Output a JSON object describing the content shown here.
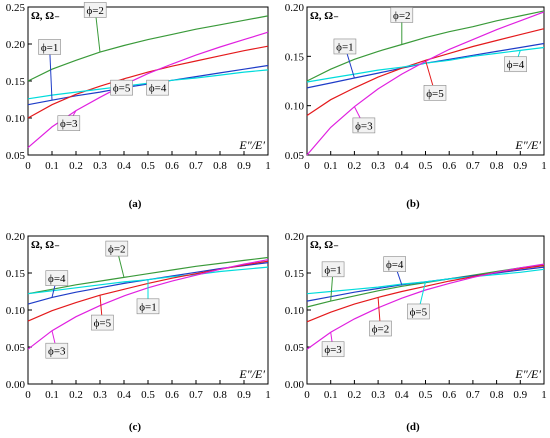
{
  "figure": {
    "captions": [
      "(a)",
      "(b)",
      "(c)",
      "(d)"
    ]
  },
  "chart_data": [
    {
      "type": "line",
      "caption": "(a)",
      "ylabel": "Ω, Ω₋",
      "xlabel": "E″/E′",
      "xlim": [
        0,
        1.0
      ],
      "ylim": [
        0.05,
        0.25
      ],
      "xticks": [
        "0",
        "0.1",
        "0.2",
        "0.3",
        "0.4",
        "0.5",
        "0.6",
        "0.7",
        "0.8",
        "0.9",
        "1"
      ],
      "yticks": [
        "0.05",
        "0.10",
        "0.15",
        "0.20",
        "0.25"
      ],
      "series": [
        {
          "name": "ϕ=2",
          "color": "#3a9a3a",
          "x": [
            0,
            0.1,
            0.2,
            0.3,
            0.4,
            0.5,
            0.6,
            0.7,
            0.8,
            0.9,
            1.0
          ],
          "y": [
            0.15,
            0.166,
            0.178,
            0.189,
            0.198,
            0.206,
            0.213,
            0.22,
            0.226,
            0.232,
            0.238
          ]
        },
        {
          "name": "ϕ=1",
          "color": "#1e3cc8",
          "x": [
            0,
            0.1,
            0.2,
            0.3,
            0.4,
            0.5,
            0.6,
            0.7,
            0.8,
            0.9,
            1.0
          ],
          "y": [
            0.118,
            0.124,
            0.13,
            0.135,
            0.141,
            0.146,
            0.151,
            0.156,
            0.161,
            0.166,
            0.171
          ]
        },
        {
          "name": "ϕ=5",
          "color": "#e41a1c",
          "x": [
            0,
            0.1,
            0.2,
            0.3,
            0.4,
            0.5,
            0.6,
            0.7,
            0.8,
            0.9,
            1.0
          ],
          "y": [
            0.1,
            0.118,
            0.132,
            0.143,
            0.153,
            0.162,
            0.17,
            0.177,
            0.184,
            0.191,
            0.197
          ]
        },
        {
          "name": "ϕ=4",
          "color": "#00dcdc",
          "x": [
            0,
            0.1,
            0.2,
            0.3,
            0.4,
            0.5,
            0.6,
            0.7,
            0.8,
            0.9,
            1.0
          ],
          "y": [
            0.126,
            0.131,
            0.135,
            0.139,
            0.143,
            0.147,
            0.151,
            0.154,
            0.158,
            0.162,
            0.165
          ]
        },
        {
          "name": "ϕ=3",
          "color": "#e020e0",
          "x": [
            0,
            0.1,
            0.2,
            0.3,
            0.4,
            0.5,
            0.6,
            0.7,
            0.8,
            0.9,
            1.0
          ],
          "y": [
            0.06,
            0.088,
            0.11,
            0.128,
            0.145,
            0.16,
            0.173,
            0.185,
            0.196,
            0.206,
            0.216
          ]
        }
      ],
      "annotations": [
        {
          "text": "ϕ=1",
          "series": "ϕ=1",
          "x": 0.09,
          "y": 0.196
        },
        {
          "text": "ϕ=2",
          "series": "ϕ=2",
          "x": 0.28,
          "y": 0.246
        },
        {
          "text": "ϕ=3",
          "series": "ϕ=3",
          "x": 0.17,
          "y": 0.093
        },
        {
          "text": "ϕ=5",
          "series": "ϕ=5",
          "x": 0.39,
          "y": 0.141
        },
        {
          "text": "ϕ=4",
          "series": "ϕ=4",
          "x": 0.54,
          "y": 0.141
        }
      ]
    },
    {
      "type": "line",
      "caption": "(b)",
      "ylabel": "Ω, Ω₋",
      "xlabel": "E″/E′",
      "xlim": [
        0,
        1.0
      ],
      "ylim": [
        0.05,
        0.2
      ],
      "xticks": [
        "0",
        "0.1",
        "0.2",
        "0.3",
        "0.4",
        "0.5",
        "0.6",
        "0.7",
        "0.8",
        "0.9",
        "1"
      ],
      "yticks": [
        "0.05",
        "0.10",
        "0.15",
        "0.20"
      ],
      "series": [
        {
          "name": "ϕ=2",
          "color": "#3a9a3a",
          "x": [
            0,
            0.1,
            0.2,
            0.3,
            0.4,
            0.5,
            0.6,
            0.7,
            0.8,
            0.9,
            1.0
          ],
          "y": [
            0.125,
            0.137,
            0.147,
            0.155,
            0.162,
            0.169,
            0.175,
            0.18,
            0.186,
            0.191,
            0.196
          ]
        },
        {
          "name": "ϕ=1",
          "color": "#1e3cc8",
          "x": [
            0,
            0.1,
            0.2,
            0.3,
            0.4,
            0.5,
            0.6,
            0.7,
            0.8,
            0.9,
            1.0
          ],
          "y": [
            0.118,
            0.123,
            0.128,
            0.133,
            0.138,
            0.143,
            0.147,
            0.151,
            0.155,
            0.159,
            0.163
          ]
        },
        {
          "name": "ϕ=5",
          "color": "#e41a1c",
          "x": [
            0,
            0.1,
            0.2,
            0.3,
            0.4,
            0.5,
            0.6,
            0.7,
            0.8,
            0.9,
            1.0
          ],
          "y": [
            0.09,
            0.106,
            0.118,
            0.129,
            0.138,
            0.146,
            0.153,
            0.16,
            0.166,
            0.172,
            0.178
          ]
        },
        {
          "name": "ϕ=4",
          "color": "#00dcdc",
          "x": [
            0,
            0.1,
            0.2,
            0.3,
            0.4,
            0.5,
            0.6,
            0.7,
            0.8,
            0.9,
            1.0
          ],
          "y": [
            0.124,
            0.128,
            0.132,
            0.136,
            0.139,
            0.143,
            0.146,
            0.15,
            0.153,
            0.156,
            0.159
          ]
        },
        {
          "name": "ϕ=3",
          "color": "#e020e0",
          "x": [
            0,
            0.1,
            0.2,
            0.3,
            0.4,
            0.5,
            0.6,
            0.7,
            0.8,
            0.9,
            1.0
          ],
          "y": [
            0.05,
            0.078,
            0.099,
            0.117,
            0.132,
            0.145,
            0.157,
            0.167,
            0.177,
            0.186,
            0.195
          ]
        }
      ],
      "annotations": [
        {
          "text": "ϕ=1",
          "series": "ϕ=1",
          "x": 0.16,
          "y": 0.16
        },
        {
          "text": "ϕ=2",
          "series": "ϕ=2",
          "x": 0.4,
          "y": 0.192
        },
        {
          "text": "ϕ=3",
          "series": "ϕ=3",
          "x": 0.24,
          "y": 0.08
        },
        {
          "text": "ϕ=5",
          "series": "ϕ=5",
          "x": 0.54,
          "y": 0.113
        },
        {
          "text": "ϕ=4",
          "series": "ϕ=4",
          "x": 0.88,
          "y": 0.142
        }
      ]
    },
    {
      "type": "line",
      "caption": "(c)",
      "ylabel": "Ω, Ω₋",
      "xlabel": "E″/E′",
      "xlim": [
        0,
        1.0
      ],
      "ylim": [
        0.0,
        0.2
      ],
      "xticks": [
        "0",
        "0.1",
        "0.2",
        "0.3",
        "0.4",
        "0.5",
        "0.6",
        "0.7",
        "0.8",
        "0.9",
        "1"
      ],
      "yticks": [
        "0.00",
        "0.05",
        "0.10",
        "0.15",
        "0.20"
      ],
      "series": [
        {
          "name": "ϕ=2",
          "color": "#3a9a3a",
          "x": [
            0,
            0.1,
            0.2,
            0.3,
            0.4,
            0.5,
            0.6,
            0.7,
            0.8,
            0.9,
            1.0
          ],
          "y": [
            0.122,
            0.128,
            0.134,
            0.139,
            0.144,
            0.149,
            0.154,
            0.159,
            0.163,
            0.167,
            0.171
          ]
        },
        {
          "name": "ϕ=4",
          "color": "#1e3cc8",
          "x": [
            0,
            0.1,
            0.2,
            0.3,
            0.4,
            0.5,
            0.6,
            0.7,
            0.8,
            0.9,
            1.0
          ],
          "y": [
            0.108,
            0.117,
            0.124,
            0.13,
            0.136,
            0.141,
            0.146,
            0.151,
            0.156,
            0.16,
            0.164
          ]
        },
        {
          "name": "ϕ=1",
          "color": "#00dcdc",
          "x": [
            0,
            0.1,
            0.2,
            0.3,
            0.4,
            0.5,
            0.6,
            0.7,
            0.8,
            0.9,
            1.0
          ],
          "y": [
            0.122,
            0.126,
            0.13,
            0.134,
            0.138,
            0.141,
            0.145,
            0.148,
            0.152,
            0.155,
            0.158
          ]
        },
        {
          "name": "ϕ=5",
          "color": "#e41a1c",
          "x": [
            0,
            0.1,
            0.2,
            0.3,
            0.4,
            0.5,
            0.6,
            0.7,
            0.8,
            0.9,
            1.0
          ],
          "y": [
            0.085,
            0.099,
            0.11,
            0.12,
            0.128,
            0.136,
            0.143,
            0.149,
            0.155,
            0.161,
            0.166
          ]
        },
        {
          "name": "ϕ=3",
          "color": "#e020e0",
          "x": [
            0,
            0.1,
            0.2,
            0.3,
            0.4,
            0.5,
            0.6,
            0.7,
            0.8,
            0.9,
            1.0
          ],
          "y": [
            0.047,
            0.072,
            0.091,
            0.106,
            0.119,
            0.13,
            0.139,
            0.147,
            0.155,
            0.162,
            0.168
          ]
        }
      ],
      "annotations": [
        {
          "text": "ϕ=4",
          "series": "ϕ=4",
          "x": 0.12,
          "y": 0.143
        },
        {
          "text": "ϕ=2",
          "series": "ϕ=2",
          "x": 0.37,
          "y": 0.183
        },
        {
          "text": "ϕ=3",
          "series": "ϕ=3",
          "x": 0.12,
          "y": 0.045
        },
        {
          "text": "ϕ=5",
          "series": "ϕ=5",
          "x": 0.31,
          "y": 0.083
        },
        {
          "text": "ϕ=1",
          "series": "ϕ=1",
          "x": 0.5,
          "y": 0.105
        }
      ]
    },
    {
      "type": "line",
      "caption": "(d)",
      "ylabel": "Ω, Ω₋",
      "xlabel": "E″/E′",
      "xlim": [
        0,
        1.0
      ],
      "ylim": [
        0.0,
        0.2
      ],
      "xticks": [
        "0",
        "0.1",
        "0.2",
        "0.3",
        "0.4",
        "0.5",
        "0.6",
        "0.7",
        "0.8",
        "0.9",
        "1"
      ],
      "yticks": [
        "0.00",
        "0.05",
        "0.10",
        "0.15",
        "0.20"
      ],
      "series": [
        {
          "name": "ϕ=1",
          "color": "#3a9a3a",
          "x": [
            0,
            0.1,
            0.2,
            0.3,
            0.4,
            0.5,
            0.6,
            0.7,
            0.8,
            0.9,
            1.0
          ],
          "y": [
            0.104,
            0.112,
            0.119,
            0.126,
            0.132,
            0.137,
            0.142,
            0.147,
            0.152,
            0.157,
            0.161
          ]
        },
        {
          "name": "ϕ=4",
          "color": "#1e3cc8",
          "x": [
            0,
            0.1,
            0.2,
            0.3,
            0.4,
            0.5,
            0.6,
            0.7,
            0.8,
            0.9,
            1.0
          ],
          "y": [
            0.112,
            0.118,
            0.124,
            0.129,
            0.134,
            0.138,
            0.142,
            0.146,
            0.15,
            0.154,
            0.158
          ]
        },
        {
          "name": "ϕ=5",
          "color": "#00dcdc",
          "x": [
            0,
            0.1,
            0.2,
            0.3,
            0.4,
            0.5,
            0.6,
            0.7,
            0.8,
            0.9,
            1.0
          ],
          "y": [
            0.122,
            0.125,
            0.128,
            0.131,
            0.135,
            0.138,
            0.142,
            0.145,
            0.148,
            0.151,
            0.155
          ]
        },
        {
          "name": "ϕ=2",
          "color": "#e41a1c",
          "x": [
            0,
            0.1,
            0.2,
            0.3,
            0.4,
            0.5,
            0.6,
            0.7,
            0.8,
            0.9,
            1.0
          ],
          "y": [
            0.084,
            0.097,
            0.108,
            0.117,
            0.125,
            0.132,
            0.139,
            0.145,
            0.151,
            0.156,
            0.16
          ]
        },
        {
          "name": "ϕ=3",
          "color": "#e020e0",
          "x": [
            0,
            0.1,
            0.2,
            0.3,
            0.4,
            0.5,
            0.6,
            0.7,
            0.8,
            0.9,
            1.0
          ],
          "y": [
            0.047,
            0.07,
            0.088,
            0.103,
            0.116,
            0.127,
            0.136,
            0.144,
            0.151,
            0.157,
            0.162
          ]
        }
      ],
      "annotations": [
        {
          "text": "ϕ=1",
          "series": "ϕ=1",
          "x": 0.11,
          "y": 0.155
        },
        {
          "text": "ϕ=4",
          "series": "ϕ=4",
          "x": 0.37,
          "y": 0.162
        },
        {
          "text": "ϕ=3",
          "series": "ϕ=3",
          "x": 0.11,
          "y": 0.047
        },
        {
          "text": "ϕ=5",
          "series": "ϕ=5",
          "x": 0.47,
          "y": 0.098
        },
        {
          "text": "ϕ=2",
          "series": "ϕ=2",
          "x": 0.31,
          "y": 0.075
        }
      ]
    }
  ]
}
